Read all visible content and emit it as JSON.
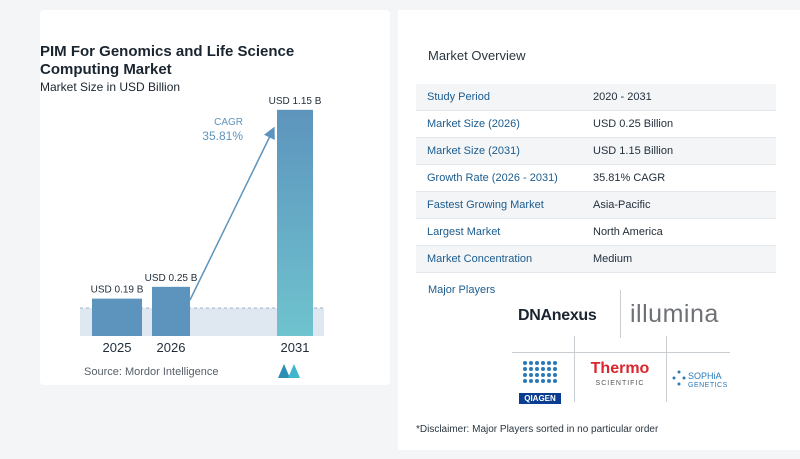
{
  "chart_data": {
    "type": "bar",
    "title": "PIM For Genomics and Life Science Computing Market",
    "subtitle": "Market Size in USD Billion",
    "categories": [
      "2025",
      "2026",
      "2031"
    ],
    "values": [
      0.19,
      0.25,
      1.15
    ],
    "data_labels": [
      "USD 0.19 B",
      "USD 0.25 B",
      "USD 1.15 B"
    ],
    "cagr_label": "CAGR",
    "cagr_value": "35.81%",
    "ylim": [
      0,
      1.2
    ],
    "grid": false,
    "colors": {
      "bar_2025": "#5d94bd",
      "bar_2026": "#5d94bd",
      "bar_2031_top": "#5d94bd",
      "bar_2031_bottom": "#6fc3cf",
      "baseline_band": "#dfe7f0",
      "arrow": "#5d94bd",
      "cagr_text": "#5d94bd"
    }
  },
  "source_text": "Source:  Mordor Intelligence",
  "overview": {
    "title": "Market Overview",
    "rows": [
      {
        "label": "Study Period",
        "value": "2020 - 2031"
      },
      {
        "label": "Market Size (2026)",
        "value": "USD 0.25 Billion"
      },
      {
        "label": "Market Size (2031)",
        "value": "USD 1.15 Billion"
      },
      {
        "label": "Growth Rate (2026 - 2031)",
        "value": "35.81% CAGR"
      },
      {
        "label": "Fastest Growing Market",
        "value": "Asia-Pacific"
      },
      {
        "label": "Largest Market",
        "value": "North America"
      },
      {
        "label": "Market Concentration",
        "value": "Medium"
      }
    ]
  },
  "major_players": {
    "title": "Major Players",
    "logos": {
      "dnanexus": "DNAnexus",
      "illumina": "illumina",
      "qiagen": "QIAGEN",
      "thermo": "Thermo",
      "thermo_sub": "SCIENTIFIC",
      "sophia_1": "SOPHiA",
      "sophia_2": "GENETICS"
    }
  },
  "disclaimer": "*Disclaimer: Major Players sorted in no particular order"
}
